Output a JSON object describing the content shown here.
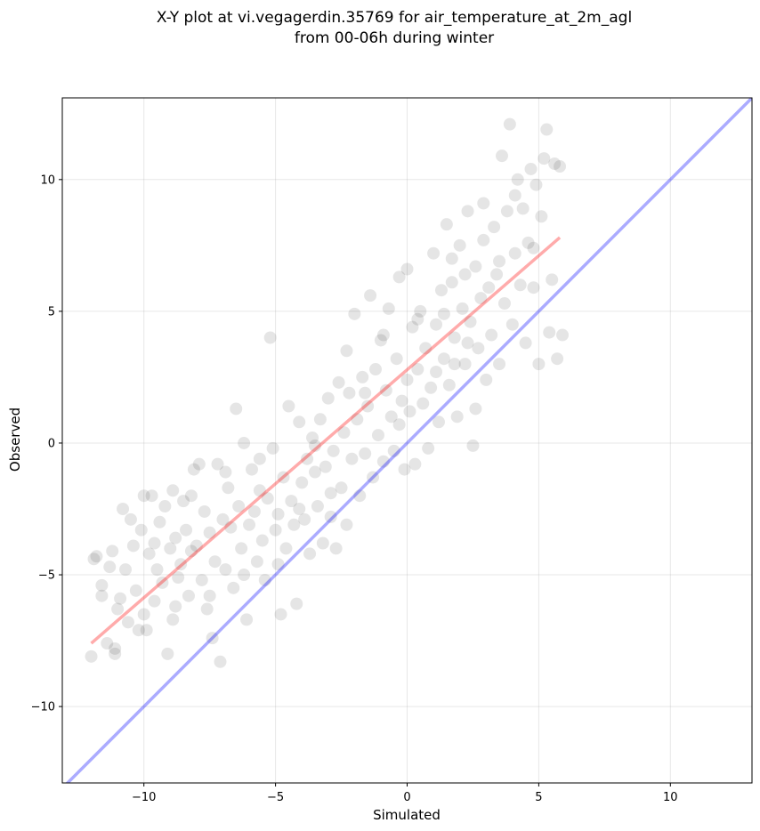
{
  "chart_data": {
    "type": "scatter",
    "title_lines": [
      "X-Y plot at vi.vegagerdin.35769 for air_temperature_at_2m_agl",
      "from 00-06h during winter"
    ],
    "xlabel": "Simulated",
    "ylabel": "Observed",
    "xlim": [
      -13.1,
      13.1
    ],
    "ylim": [
      -12.9,
      13.1
    ],
    "xticks": [
      -10,
      -5,
      0,
      5,
      10
    ],
    "xtick_labels": [
      "−10",
      "−5",
      "0",
      "5",
      "10"
    ],
    "yticks": [
      -10,
      -5,
      0,
      5,
      10
    ],
    "ytick_labels": [
      "−10",
      "−5",
      "0",
      "5",
      "10"
    ],
    "grid": true,
    "point_color": "#000000",
    "identity_line": {
      "x": [
        -13.1,
        13.1
      ],
      "y": [
        -13.1,
        13.1
      ],
      "color": "#0000ff"
    },
    "fit_line": {
      "x": [
        -12.0,
        5.8
      ],
      "y": [
        -7.6,
        7.8
      ],
      "color": "#ff0000"
    },
    "points": [
      [
        -12.0,
        -8.1
      ],
      [
        -11.9,
        -4.4
      ],
      [
        -11.8,
        -4.3
      ],
      [
        -11.6,
        -5.4
      ],
      [
        -11.6,
        -5.8
      ],
      [
        -11.4,
        -7.6
      ],
      [
        -11.2,
        -4.1
      ],
      [
        -11.1,
        -7.8
      ],
      [
        -11.1,
        -8.0
      ],
      [
        -11.0,
        -6.3
      ],
      [
        -10.9,
        -5.9
      ],
      [
        -10.8,
        -2.5
      ],
      [
        -10.7,
        -4.8
      ],
      [
        -10.6,
        -6.8
      ],
      [
        -10.4,
        -3.9
      ],
      [
        -10.3,
        -5.6
      ],
      [
        -10.1,
        -3.3
      ],
      [
        -10.0,
        -2.0
      ],
      [
        -10.0,
        -6.5
      ],
      [
        -9.9,
        -7.1
      ],
      [
        -9.8,
        -4.2
      ],
      [
        -9.7,
        -2.0
      ],
      [
        -9.6,
        -6.0
      ],
      [
        -9.5,
        -4.8
      ],
      [
        -9.4,
        -3.0
      ],
      [
        -9.3,
        -5.3
      ],
      [
        -9.2,
        -2.4
      ],
      [
        -9.1,
        -8.0
      ],
      [
        -9.0,
        -4.0
      ],
      [
        -8.9,
        -6.7
      ],
      [
        -8.9,
        -1.8
      ],
      [
        -8.8,
        -3.6
      ],
      [
        -8.7,
        -5.1
      ],
      [
        -8.6,
        -4.6
      ],
      [
        -8.5,
        -2.2
      ],
      [
        -8.4,
        -3.3
      ],
      [
        -8.3,
        -5.8
      ],
      [
        -8.2,
        -4.1
      ],
      [
        -8.1,
        -1.0
      ],
      [
        -8.0,
        -3.9
      ],
      [
        -7.9,
        -0.8
      ],
      [
        -7.8,
        -5.2
      ],
      [
        -7.7,
        -2.6
      ],
      [
        -7.6,
        -6.3
      ],
      [
        -7.5,
        -3.4
      ],
      [
        -7.4,
        -7.4
      ],
      [
        -7.3,
        -4.5
      ],
      [
        -7.2,
        -0.8
      ],
      [
        -7.1,
        -8.3
      ],
      [
        -7.0,
        -2.9
      ],
      [
        -6.9,
        -4.8
      ],
      [
        -6.8,
        -1.7
      ],
      [
        -6.7,
        -3.2
      ],
      [
        -6.6,
        -5.5
      ],
      [
        -6.5,
        1.3
      ],
      [
        -6.4,
        -2.4
      ],
      [
        -6.3,
        -4.0
      ],
      [
        -6.2,
        0.0
      ],
      [
        -6.1,
        -6.7
      ],
      [
        -6.0,
        -3.1
      ],
      [
        -5.9,
        -1.0
      ],
      [
        -5.8,
        -2.6
      ],
      [
        -5.7,
        -4.5
      ],
      [
        -5.6,
        -1.8
      ],
      [
        -5.5,
        -3.7
      ],
      [
        -5.4,
        -5.2
      ],
      [
        -5.3,
        -2.1
      ],
      [
        -5.2,
        4.0
      ],
      [
        -5.1,
        -0.2
      ],
      [
        -5.0,
        -3.3
      ],
      [
        -4.9,
        -2.7
      ],
      [
        -4.8,
        -6.5
      ],
      [
        -4.7,
        -1.3
      ],
      [
        -4.6,
        -4.0
      ],
      [
        -4.5,
        1.4
      ],
      [
        -4.4,
        -2.2
      ],
      [
        -4.3,
        -3.1
      ],
      [
        -4.2,
        -6.1
      ],
      [
        -4.1,
        0.8
      ],
      [
        -4.0,
        -1.5
      ],
      [
        -3.9,
        -2.9
      ],
      [
        -3.8,
        -0.6
      ],
      [
        -3.7,
        -4.2
      ],
      [
        -3.6,
        0.2
      ],
      [
        -3.5,
        -1.1
      ],
      [
        -3.4,
        -2.4
      ],
      [
        -3.3,
        0.9
      ],
      [
        -3.2,
        -3.8
      ],
      [
        -3.1,
        -0.9
      ],
      [
        -3.0,
        1.7
      ],
      [
        -2.9,
        -2.8
      ],
      [
        -2.8,
        -0.3
      ],
      [
        -2.7,
        -4.0
      ],
      [
        -2.6,
        2.3
      ],
      [
        -2.5,
        -1.7
      ],
      [
        -2.4,
        0.4
      ],
      [
        -2.3,
        -3.1
      ],
      [
        -2.2,
        1.9
      ],
      [
        -2.1,
        -0.6
      ],
      [
        -2.0,
        4.9
      ],
      [
        -1.9,
        0.9
      ],
      [
        -1.8,
        -2.0
      ],
      [
        -1.7,
        2.5
      ],
      [
        -1.6,
        -0.4
      ],
      [
        -1.5,
        1.4
      ],
      [
        -1.4,
        5.6
      ],
      [
        -1.3,
        -1.3
      ],
      [
        -1.2,
        2.8
      ],
      [
        -1.1,
        0.3
      ],
      [
        -1.0,
        3.9
      ],
      [
        -0.9,
        -0.7
      ],
      [
        -0.8,
        2.0
      ],
      [
        -0.7,
        5.1
      ],
      [
        -0.6,
        1.0
      ],
      [
        -0.5,
        -0.3
      ],
      [
        -0.4,
        3.2
      ],
      [
        -0.3,
        6.3
      ],
      [
        -0.2,
        1.6
      ],
      [
        -0.1,
        -1.0
      ],
      [
        0.0,
        2.4
      ],
      [
        0.0,
        6.6
      ],
      [
        0.1,
        1.2
      ],
      [
        0.2,
        4.4
      ],
      [
        0.3,
        -0.8
      ],
      [
        0.4,
        2.8
      ],
      [
        0.5,
        5.0
      ],
      [
        0.6,
        1.5
      ],
      [
        0.7,
        3.6
      ],
      [
        0.8,
        -0.2
      ],
      [
        0.9,
        2.1
      ],
      [
        1.0,
        7.2
      ],
      [
        1.1,
        4.5
      ],
      [
        1.2,
        0.8
      ],
      [
        1.3,
        5.8
      ],
      [
        1.4,
        3.2
      ],
      [
        1.5,
        8.3
      ],
      [
        1.6,
        2.2
      ],
      [
        1.7,
        6.1
      ],
      [
        1.8,
        4.0
      ],
      [
        1.9,
        1.0
      ],
      [
        2.0,
        7.5
      ],
      [
        2.1,
        5.1
      ],
      [
        2.2,
        3.0
      ],
      [
        2.3,
        8.8
      ],
      [
        2.4,
        4.6
      ],
      [
        2.5,
        -0.1
      ],
      [
        2.6,
        6.7
      ],
      [
        2.7,
        3.6
      ],
      [
        2.8,
        5.5
      ],
      [
        2.9,
        7.7
      ],
      [
        3.0,
        2.4
      ],
      [
        3.1,
        5.9
      ],
      [
        3.2,
        4.1
      ],
      [
        3.3,
        8.2
      ],
      [
        3.4,
        6.4
      ],
      [
        3.5,
        3.0
      ],
      [
        3.6,
        10.9
      ],
      [
        3.7,
        5.3
      ],
      [
        3.8,
        8.8
      ],
      [
        3.9,
        12.1
      ],
      [
        4.0,
        4.5
      ],
      [
        4.1,
        7.2
      ],
      [
        4.2,
        10.0
      ],
      [
        4.3,
        6.0
      ],
      [
        4.4,
        8.9
      ],
      [
        4.5,
        3.8
      ],
      [
        4.6,
        7.6
      ],
      [
        4.7,
        10.4
      ],
      [
        4.8,
        5.9
      ],
      [
        4.9,
        9.8
      ],
      [
        5.0,
        3.0
      ],
      [
        5.1,
        8.6
      ],
      [
        5.2,
        10.8
      ],
      [
        5.3,
        11.9
      ],
      [
        5.4,
        4.2
      ],
      [
        5.5,
        6.2
      ],
      [
        5.6,
        10.6
      ],
      [
        5.7,
        3.2
      ],
      [
        5.8,
        10.5
      ],
      [
        5.9,
        4.1
      ],
      [
        -11.3,
        -4.7
      ],
      [
        -10.5,
        -2.9
      ],
      [
        -10.2,
        -7.1
      ],
      [
        -9.6,
        -3.8
      ],
      [
        -8.8,
        -6.2
      ],
      [
        -8.2,
        -2.0
      ],
      [
        -7.5,
        -5.8
      ],
      [
        -6.9,
        -1.1
      ],
      [
        -6.2,
        -5.0
      ],
      [
        -5.6,
        -0.6
      ],
      [
        -4.9,
        -4.6
      ],
      [
        -4.1,
        -2.5
      ],
      [
        -3.5,
        -0.1
      ],
      [
        -2.9,
        -1.9
      ],
      [
        -2.3,
        3.5
      ],
      [
        -1.6,
        1.9
      ],
      [
        -0.9,
        4.1
      ],
      [
        -0.3,
        0.7
      ],
      [
        0.4,
        4.7
      ],
      [
        1.1,
        2.7
      ],
      [
        1.7,
        7.0
      ],
      [
        2.3,
        3.8
      ],
      [
        2.9,
        9.1
      ],
      [
        3.5,
        6.9
      ],
      [
        4.1,
        9.4
      ],
      [
        4.8,
        7.4
      ],
      [
        2.6,
        1.3
      ],
      [
        1.8,
        3.0
      ],
      [
        1.4,
        4.9
      ],
      [
        2.2,
        6.4
      ]
    ]
  }
}
